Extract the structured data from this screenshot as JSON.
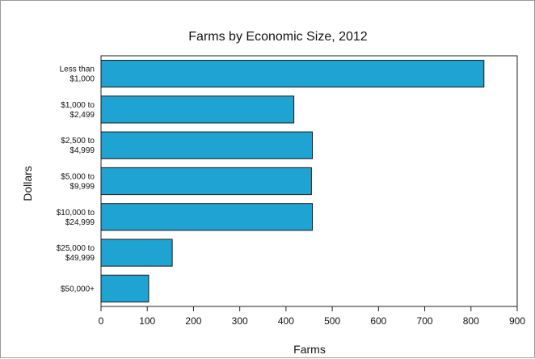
{
  "chart_data": {
    "type": "bar",
    "orientation": "horizontal",
    "title": "Farms by Economic Size, 2012",
    "xlabel": "Farms",
    "ylabel": "Dollars",
    "categories": [
      [
        "Less than",
        "$1,000"
      ],
      [
        "$1,000 to",
        "$2,499"
      ],
      [
        "$2,500 to",
        "$4,999"
      ],
      [
        "$5,000 to",
        "$9,999"
      ],
      [
        "$10,000 to",
        "$24,999"
      ],
      [
        "$25,000 to",
        "$49,999"
      ],
      [
        "$50,000+"
      ]
    ],
    "values": [
      828,
      417,
      457,
      455,
      457,
      154,
      103
    ],
    "xlim": [
      0,
      900
    ],
    "xticks": [
      0,
      100,
      200,
      300,
      400,
      500,
      600,
      700,
      800,
      900
    ],
    "bar_color": "#1fa3d3",
    "bar_edge_color": "#1a1a1a",
    "grid": false
  }
}
